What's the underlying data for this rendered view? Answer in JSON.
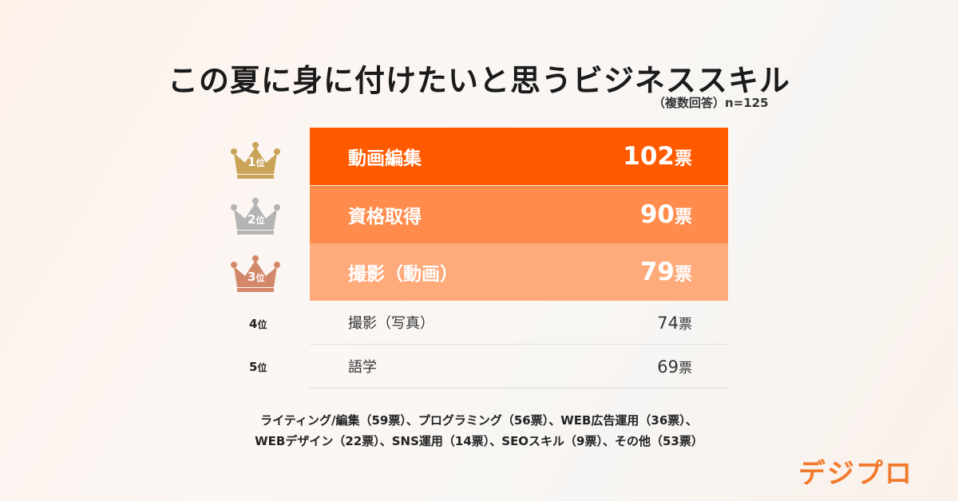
{
  "title": "この夏に身に付けたいと思うビジネススキル",
  "subtitle": "（複数回答）n=125",
  "colors": {
    "rank1_bar": "#ff5a00",
    "rank2_bar": "#ff8c4c",
    "rank3_bar": "#ffaa7b",
    "gold": "#c9a458",
    "silver": "#b4b4b4",
    "bronze": "#d4886a"
  },
  "chart_data": {
    "type": "table",
    "title": "この夏に身に付けたいと思うビジネススキル",
    "rows": [
      {
        "rank": "1",
        "rank_unit": "位",
        "label": "動画編集",
        "value": 102,
        "value_text": "102",
        "unit": "票"
      },
      {
        "rank": "2",
        "rank_unit": "位",
        "label": "資格取得",
        "value": 90,
        "value_text": "90",
        "unit": "票"
      },
      {
        "rank": "3",
        "rank_unit": "位",
        "label": "撮影（動画）",
        "value": 79,
        "value_text": "79",
        "unit": "票"
      },
      {
        "rank": "4",
        "rank_unit": "位",
        "label": "撮影（写真）",
        "value": 74,
        "value_text": "74",
        "unit": "票"
      },
      {
        "rank": "5",
        "rank_unit": "位",
        "label": "語学",
        "value": 69,
        "value_text": "69",
        "unit": "票"
      }
    ],
    "others": {
      "line1": "ライティング/編集（59票）、プログラミング（56票）、WEB広告運用（36票）、",
      "line2": "WEBデザイン（22票）、SNS運用（14票）、SEOスキル（9票）、その他（53票）"
    }
  },
  "logo": {
    "text": "デジプロ"
  }
}
